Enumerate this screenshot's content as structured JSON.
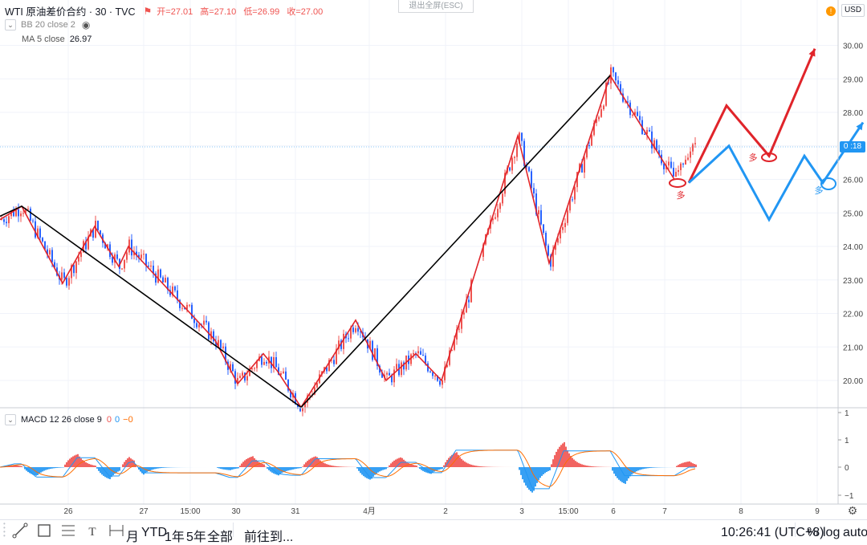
{
  "header": {
    "symbol_title": "WTI 原油差价合约 · 30 · TVC",
    "open": "开=27.01",
    "high": "高=27.10",
    "low": "低=26.99",
    "close": "收=27.00",
    "exit_fullscreen": "退出全屏(ESC)",
    "currency": "USD",
    "alert": "!"
  },
  "indicators": {
    "bb": "BB 20 close 2",
    "ma_label": "MA 5 close",
    "ma_value": "26.97",
    "macd_label": "MACD 12 26 close 9",
    "macd_v1": "0",
    "macd_v2": "0",
    "macd_v3": "−0"
  },
  "price_axis": [
    "30.00",
    "29.00",
    "28.00",
    "27.00",
    "26.00",
    "25.00",
    "24.00",
    "23.00",
    "22.00",
    "21.00",
    "20.00"
  ],
  "macd_axis": [
    "1",
    "1",
    "0",
    "−1"
  ],
  "current_price_badge": "0 :18",
  "time_axis": [
    "26",
    "27",
    "15:00",
    "30",
    "31",
    "4月",
    "2",
    "3",
    "15:00",
    "6",
    "7",
    "8",
    "9"
  ],
  "annotations": {
    "long_label": "多"
  },
  "bottom_bar": {
    "ranges": [
      "月",
      "YTD",
      "1年",
      "5年",
      "全部"
    ],
    "goto": "前往到...",
    "clock": "10:26:41 (UTC+8)",
    "percent": "%",
    "log": "log",
    "auto": "auto"
  },
  "colors": {
    "up": "#ef5350",
    "down": "#2962ff",
    "zigzag": "#e0242a",
    "trend": "#000000",
    "forecast_red": "#e0242a",
    "forecast_blue": "#2196f3",
    "macd_line": "#2196f3",
    "signal_line": "#ff6d00"
  },
  "chart_data": {
    "type": "candlestick",
    "symbol": "WTI",
    "interval": "30",
    "ylim": [
      19.6,
      30.5
    ],
    "x_ticks": [
      "26",
      "27",
      "15:00",
      "30",
      "31",
      "4月",
      "2",
      "3",
      "15:00",
      "6",
      "7",
      "8",
      "9"
    ],
    "zigzag_pivots": [
      24.8,
      25.2,
      22.9,
      24.6,
      23.4,
      24.0,
      21.2,
      19.9,
      20.8,
      20.3,
      19.2,
      21.8,
      20.0,
      20.8,
      20.0,
      27.3,
      23.5,
      29.1,
      26.0
    ],
    "trend_pivots": [
      24.9,
      25.2,
      19.2,
      29.1
    ],
    "forecast_red": [
      25.9,
      28.2,
      26.7,
      29.9
    ],
    "forecast_blue": [
      25.9,
      27.0,
      24.8,
      26.7,
      25.9,
      27.7
    ],
    "macd_ylim": [
      -1.2,
      1.2
    ]
  }
}
